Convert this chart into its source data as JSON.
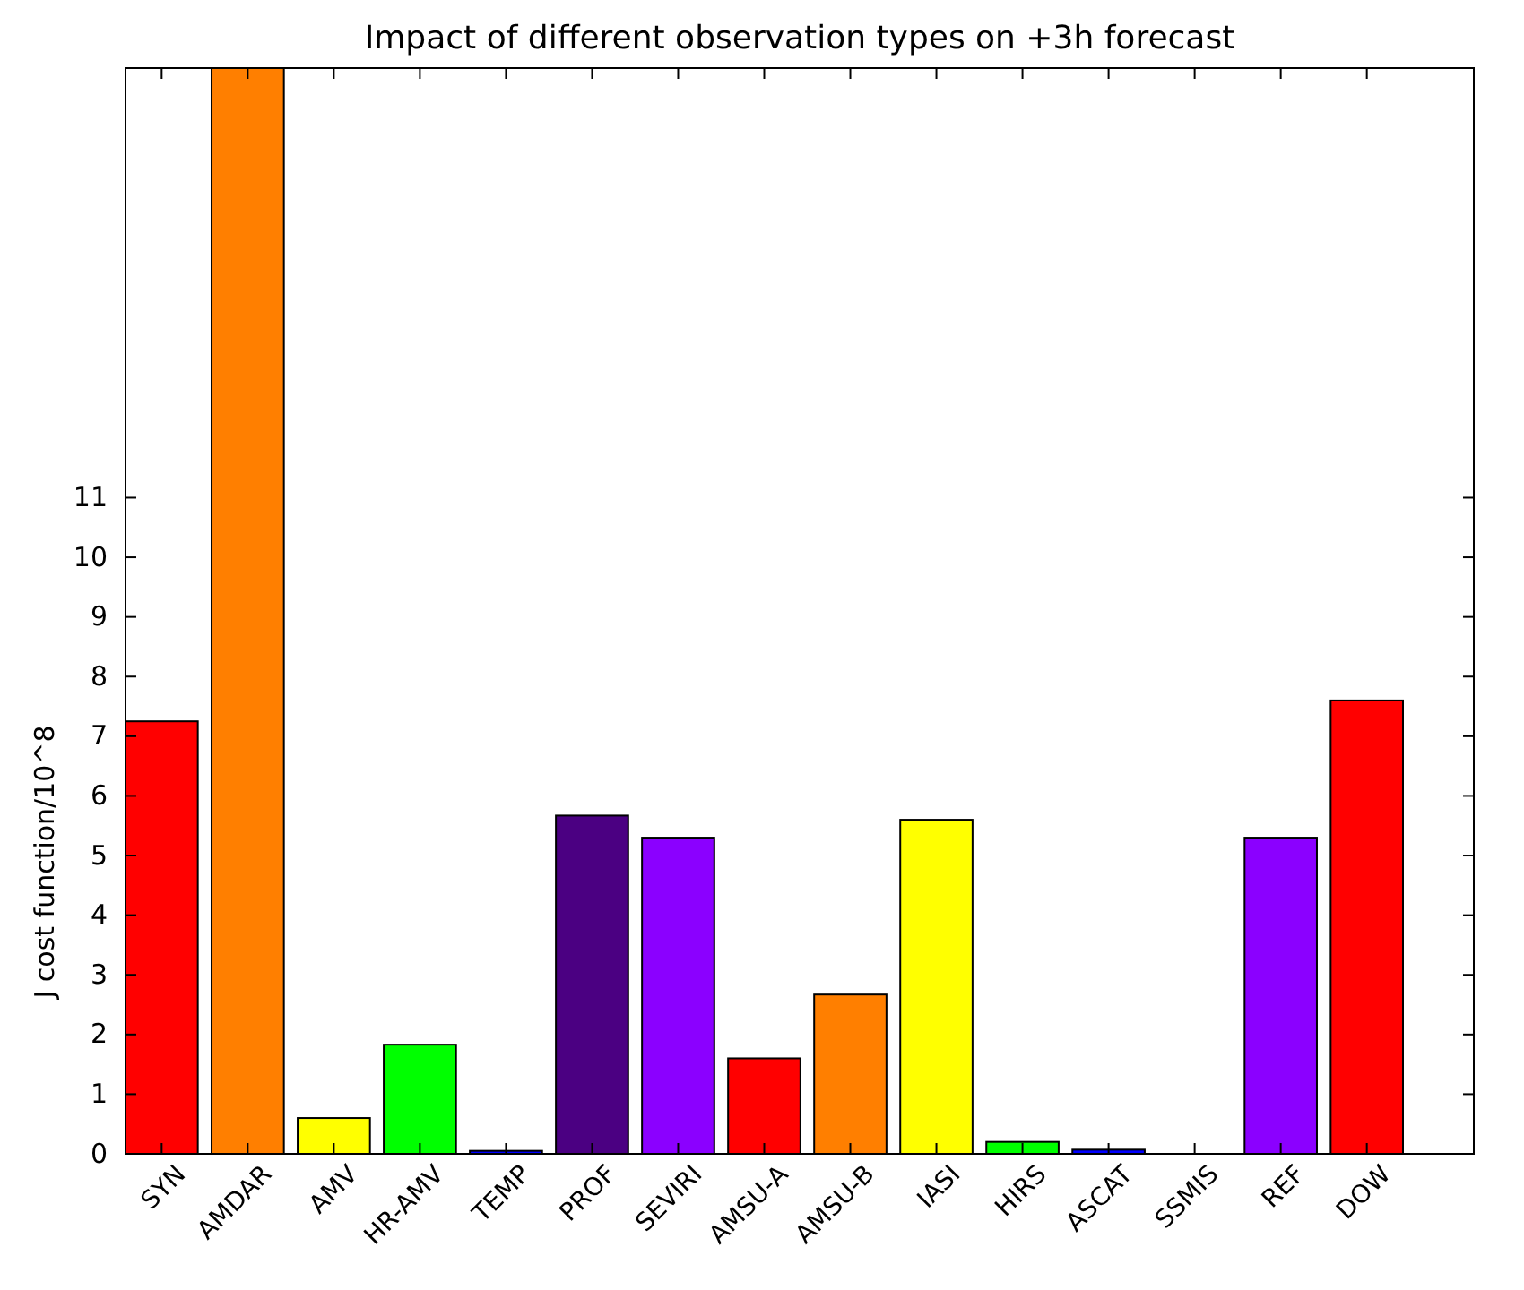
{
  "chart_data": {
    "type": "bar",
    "title": "Impact of different observation types on +3h forecast",
    "ylabel": "J cost function/10^8",
    "categories": [
      "SYN",
      "AMDAR",
      "AMV",
      "HR-AMV",
      "TEMP",
      "PROF",
      "SEVIRI",
      "AMSU-A",
      "AMSU-B",
      "IASI",
      "HIRS",
      "ASCAT",
      "SSMIS",
      "REF",
      "DOW"
    ],
    "values": [
      7.25,
      18.2,
      0.6,
      1.83,
      0.05,
      5.67,
      5.3,
      1.6,
      2.67,
      5.6,
      0.2,
      0.07,
      0,
      5.3,
      7.6
    ],
    "colors": [
      "#ff0000",
      "#ff7f00",
      "#ffff00",
      "#00ff00",
      "#0000ff",
      "#4b0082",
      "#8b00ff",
      "#ff0000",
      "#ff7f00",
      "#ffff00",
      "#00ff00",
      "#0000ff",
      "#4b0082",
      "#8b00ff",
      "#ff0000"
    ],
    "ylim": [
      0,
      18.2
    ],
    "yticks": [
      0,
      1,
      2,
      3,
      4,
      5,
      6,
      7,
      8,
      9,
      10,
      11
    ],
    "grid": false
  }
}
